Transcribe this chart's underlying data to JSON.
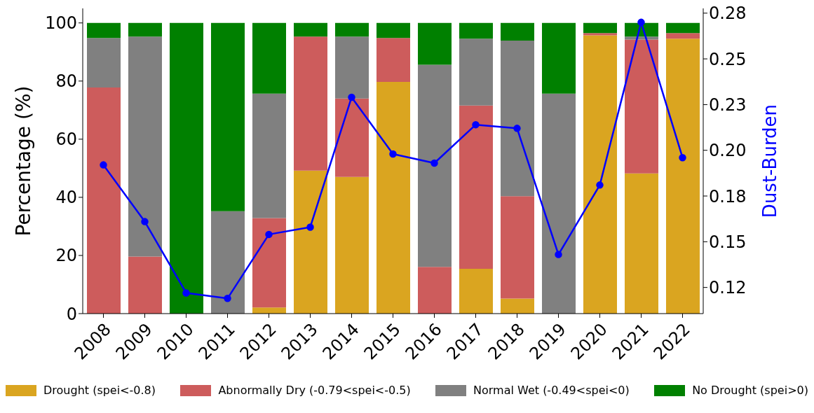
{
  "chart_data": {
    "type": "bar",
    "stacked": true,
    "categories": [
      "2008",
      "2009",
      "2010",
      "2011",
      "2012",
      "2013",
      "2014",
      "2015",
      "2016",
      "2017",
      "2018",
      "2019",
      "2020",
      "2021",
      "2022"
    ],
    "series": [
      {
        "name": "Drought (spei<-0.8)",
        "color": "#daa520",
        "values": [
          0,
          0,
          0,
          0,
          2.1,
          49.2,
          47.0,
          79.7,
          0,
          15.4,
          5.2,
          0,
          95.7,
          48.2,
          94.6
        ]
      },
      {
        "name": "Abnormally Dry (-0.79<spei<-0.5)",
        "color": "#cd5c5c",
        "values": [
          77.8,
          19.6,
          0,
          0,
          30.8,
          46.1,
          27.0,
          15.1,
          16.1,
          56.2,
          35.2,
          0,
          0.8,
          46.1,
          1.9
        ]
      },
      {
        "name": "Normal Wet (-0.49<spei<0)",
        "color": "#808080",
        "values": [
          17.0,
          75.7,
          0,
          35.2,
          42.8,
          0,
          21.3,
          0,
          69.5,
          23.0,
          53.5,
          75.7,
          0,
          1.0,
          0
        ]
      },
      {
        "name": "No Drought (spei>0)",
        "color": "#008000",
        "values": [
          5.2,
          4.7,
          100,
          64.8,
          24.3,
          4.7,
          4.7,
          5.2,
          14.4,
          5.4,
          6.1,
          24.3,
          3.5,
          4.7,
          3.5
        ]
      },
      {
        "type": "line",
        "axis": "y2",
        "color": "#0000ff",
        "marker": "circle",
        "values": [
          0.192,
          0.161,
          0.122,
          0.119,
          0.154,
          0.158,
          0.229,
          0.198,
          0.193,
          0.214,
          0.212,
          0.143,
          0.181,
          0.27,
          0.196
        ]
      }
    ],
    "ylabel": "Percentage (%)",
    "y2label": "Dust-Burden",
    "ylim": [
      0,
      105
    ],
    "yticks": [
      0,
      20,
      40,
      60,
      80,
      100
    ],
    "y2lim": [
      0.1107,
      0.2776
    ],
    "y2ticks": [
      {
        "value": 0.125,
        "label": "0.12"
      },
      {
        "value": 0.15,
        "label": "0.15"
      },
      {
        "value": 0.175,
        "label": "0.18"
      },
      {
        "value": 0.2,
        "label": "0.20"
      },
      {
        "value": 0.225,
        "label": "0.23"
      },
      {
        "value": 0.25,
        "label": "0.25"
      },
      {
        "value": 0.275,
        "label": "0.28"
      }
    ],
    "legend": "bottom"
  }
}
